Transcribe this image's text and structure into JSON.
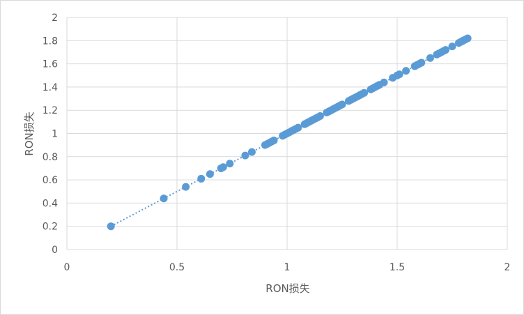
{
  "chart_data": {
    "type": "scatter",
    "title": "",
    "xlabel": "RON损失",
    "ylabel": "RON损失",
    "xlim": [
      0,
      2
    ],
    "ylim": [
      0,
      2
    ],
    "x_ticks": [
      0,
      0.5,
      1,
      1.5,
      2
    ],
    "x_tick_labels": [
      "0",
      "0.5",
      "1",
      "1.5",
      "2"
    ],
    "y_ticks": [
      0,
      0.2,
      0.4,
      0.6,
      0.8,
      1,
      1.2,
      1.4,
      1.6,
      1.8,
      2
    ],
    "y_tick_labels": [
      "0",
      "0.2",
      "0.4",
      "0.6",
      "0.8",
      "1",
      "1.2",
      "1.4",
      "1.6",
      "1.8",
      "2"
    ],
    "grid": true,
    "legend": "none",
    "trendline": {
      "style": "dotted",
      "x_range": [
        0.2,
        1.82
      ]
    },
    "colors": {
      "marker": "#5b9bd5",
      "trendline": "#5b9bd5",
      "grid": "#d9d9d9",
      "text": "#595959"
    },
    "series": [
      {
        "points": [
          [
            0.2,
            0.2
          ],
          [
            0.44,
            0.44
          ],
          [
            0.54,
            0.54
          ],
          [
            0.61,
            0.61
          ],
          [
            0.65,
            0.65
          ],
          [
            0.7,
            0.7
          ],
          [
            0.71,
            0.71
          ],
          [
            0.74,
            0.74
          ],
          [
            0.81,
            0.81
          ],
          [
            0.84,
            0.84
          ],
          [
            0.9,
            0.9
          ],
          [
            0.91,
            0.91
          ],
          [
            0.92,
            0.92
          ],
          [
            0.93,
            0.93
          ],
          [
            0.94,
            0.94
          ],
          [
            0.98,
            0.98
          ],
          [
            0.99,
            0.99
          ],
          [
            1.0,
            1.0
          ],
          [
            1.01,
            1.01
          ],
          [
            1.02,
            1.02
          ],
          [
            1.03,
            1.03
          ],
          [
            1.04,
            1.04
          ],
          [
            1.05,
            1.05
          ],
          [
            1.08,
            1.08
          ],
          [
            1.09,
            1.09
          ],
          [
            1.1,
            1.1
          ],
          [
            1.11,
            1.11
          ],
          [
            1.12,
            1.12
          ],
          [
            1.13,
            1.13
          ],
          [
            1.14,
            1.14
          ],
          [
            1.15,
            1.15
          ],
          [
            1.18,
            1.18
          ],
          [
            1.19,
            1.19
          ],
          [
            1.2,
            1.2
          ],
          [
            1.21,
            1.21
          ],
          [
            1.22,
            1.22
          ],
          [
            1.23,
            1.23
          ],
          [
            1.24,
            1.24
          ],
          [
            1.25,
            1.25
          ],
          [
            1.28,
            1.28
          ],
          [
            1.29,
            1.29
          ],
          [
            1.3,
            1.3
          ],
          [
            1.31,
            1.31
          ],
          [
            1.32,
            1.32
          ],
          [
            1.33,
            1.33
          ],
          [
            1.34,
            1.34
          ],
          [
            1.35,
            1.35
          ],
          [
            1.38,
            1.38
          ],
          [
            1.39,
            1.39
          ],
          [
            1.4,
            1.4
          ],
          [
            1.41,
            1.41
          ],
          [
            1.42,
            1.42
          ],
          [
            1.44,
            1.44
          ],
          [
            1.48,
            1.48
          ],
          [
            1.5,
            1.5
          ],
          [
            1.51,
            1.51
          ],
          [
            1.54,
            1.54
          ],
          [
            1.58,
            1.58
          ],
          [
            1.59,
            1.59
          ],
          [
            1.6,
            1.6
          ],
          [
            1.61,
            1.61
          ],
          [
            1.65,
            1.65
          ],
          [
            1.68,
            1.68
          ],
          [
            1.69,
            1.69
          ],
          [
            1.7,
            1.7
          ],
          [
            1.71,
            1.71
          ],
          [
            1.72,
            1.72
          ],
          [
            1.75,
            1.75
          ],
          [
            1.78,
            1.78
          ],
          [
            1.79,
            1.79
          ],
          [
            1.8,
            1.8
          ],
          [
            1.81,
            1.81
          ],
          [
            1.82,
            1.82
          ]
        ]
      }
    ]
  }
}
